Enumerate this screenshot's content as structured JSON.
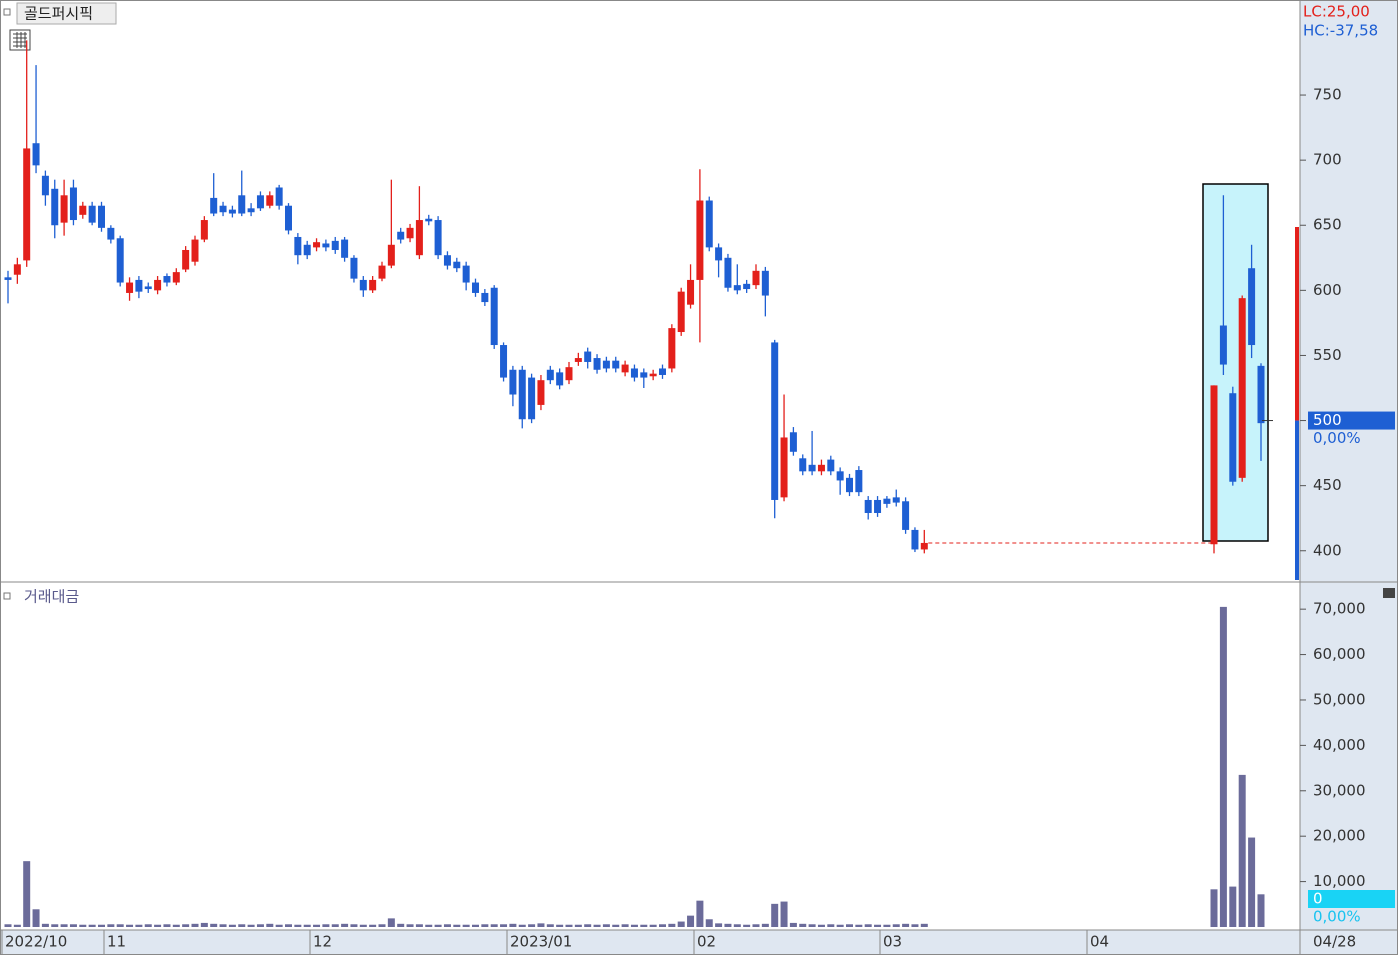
{
  "chart_data": {
    "type": "candlestick",
    "title": "골드퍼시픽",
    "lc_label": "LC:25,00",
    "hc_label": "HC:-37,58",
    "volume_title": "거래대금",
    "ylim": [
      376,
      823
    ],
    "yticks": [
      400,
      450,
      500,
      550,
      600,
      650,
      700,
      750
    ],
    "vlim": [
      0,
      75100
    ],
    "vticks": [
      {
        "value": 10000,
        "label": "10,000"
      },
      {
        "value": 20000,
        "label": "20,000"
      },
      {
        "value": 30000,
        "label": "30,000"
      },
      {
        "value": 40000,
        "label": "40,000"
      },
      {
        "value": 50000,
        "label": "50,000"
      },
      {
        "value": 60000,
        "label": "60,000"
      },
      {
        "value": 70000,
        "label": "70,000"
      }
    ],
    "xlabels": [
      "2022/10",
      "11",
      "12",
      "2023/01",
      "02",
      "03",
      "04"
    ],
    "last_date": "04/28",
    "last_price": 500,
    "price_change": "0,00%",
    "last_volume": 0,
    "volume_change": "0,00%",
    "up_color": "#e3201b",
    "down_color": "#1e5fd3",
    "volume_color": "#6b6b9a",
    "segments": [
      {
        "open": [
          610,
          612,
          623,
          713,
          688,
          678,
          652,
          679,
          658,
          665,
          665,
          648,
          640,
          598,
          608,
          603,
          600,
          611,
          606,
          616,
          622,
          639,
          671,
          665,
          662,
          673,
          663,
          673,
          665,
          679,
          665,
          641,
          635,
          633,
          636,
          638,
          639,
          625,
          608,
          600,
          609,
          619,
          645,
          640,
          627,
          655,
          654,
          627,
          622,
          619,
          606,
          598,
          602,
          558,
          539,
          539,
          533,
          512,
          539,
          537,
          531,
          545,
          553,
          548,
          546,
          546,
          537,
          540,
          537,
          534,
          540,
          540,
          568,
          589,
          608,
          669,
          633,
          625,
          604,
          605,
          604,
          615,
          560,
          441,
          491,
          471,
          466,
          461,
          470,
          461,
          456,
          462,
          439,
          439,
          440,
          441,
          438,
          416,
          401
        ],
        "high": [
          615,
          625,
          792,
          773,
          692,
          685,
          685,
          685,
          668,
          668,
          668,
          650,
          642,
          610,
          611,
          606,
          611,
          613,
          617,
          634,
          642,
          657,
          690,
          668,
          665,
          692,
          667,
          676,
          676,
          681,
          667,
          644,
          638,
          640,
          639,
          641,
          641,
          627,
          611,
          611,
          622,
          685,
          648,
          651,
          680,
          658,
          657,
          630,
          625,
          622,
          609,
          601,
          604,
          560,
          542,
          542,
          536,
          535,
          542,
          540,
          545,
          552,
          556,
          551,
          549,
          549,
          546,
          543,
          540,
          539,
          543,
          574,
          602,
          620,
          693,
          672,
          636,
          628,
          620,
          608,
          620,
          618,
          562,
          520,
          495,
          474,
          492,
          470,
          473,
          464,
          459,
          465,
          442,
          442,
          442,
          447,
          441,
          418,
          416
        ],
        "low": [
          590,
          605,
          618,
          690,
          665,
          640,
          642,
          650,
          655,
          650,
          645,
          636,
          603,
          592,
          594,
          598,
          597,
          603,
          604,
          614,
          619,
          637,
          657,
          657,
          656,
          657,
          657,
          661,
          663,
          662,
          643,
          620,
          624,
          630,
          630,
          628,
          622,
          606,
          595,
          598,
          607,
          617,
          636,
          637,
          624,
          650,
          624,
          616,
          614,
          600,
          595,
          588,
          555,
          530,
          511,
          494,
          498,
          508,
          528,
          524,
          528,
          542,
          540,
          536,
          537,
          537,
          534,
          530,
          525,
          531,
          532,
          537,
          565,
          586,
          560,
          630,
          610,
          599,
          597,
          598,
          601,
          580,
          425,
          438,
          473,
          458,
          458,
          458,
          458,
          443,
          442,
          442,
          424,
          426,
          433,
          434,
          413,
          399,
          398
        ],
        "close": [
          608,
          620,
          709,
          696,
          673,
          650,
          673,
          654,
          665,
          652,
          648,
          639,
          606,
          606,
          599,
          601,
          608,
          606,
          614,
          631,
          639,
          654,
          659,
          660,
          659,
          659,
          660,
          663,
          673,
          665,
          646,
          627,
          627,
          637,
          633,
          631,
          625,
          609,
          600,
          608,
          619,
          635,
          639,
          648,
          654,
          653,
          627,
          619,
          617,
          606,
          598,
          591,
          558,
          533,
          520,
          501,
          501,
          531,
          531,
          527,
          541,
          548,
          545,
          539,
          540,
          540,
          543,
          533,
          533,
          536,
          535,
          571,
          599,
          608,
          669,
          633,
          623,
          602,
          600,
          601,
          615,
          596,
          439,
          487,
          476,
          461,
          461,
          466,
          461,
          454,
          445,
          445,
          429,
          429,
          436,
          437,
          416,
          401,
          406
        ],
        "volume": [
          600,
          500,
          14500,
          3900,
          700,
          600,
          600,
          600,
          500,
          500,
          500,
          600,
          600,
          500,
          500,
          600,
          500,
          600,
          500,
          600,
          700,
          900,
          700,
          600,
          500,
          600,
          500,
          600,
          700,
          500,
          600,
          500,
          500,
          500,
          600,
          600,
          700,
          600,
          500,
          500,
          600,
          1900,
          700,
          600,
          600,
          500,
          500,
          600,
          500,
          500,
          500,
          600,
          600,
          600,
          700,
          500,
          600,
          800,
          600,
          500,
          500,
          500,
          600,
          500,
          600,
          500,
          600,
          500,
          500,
          500,
          600,
          700,
          1200,
          2500,
          5800,
          1700,
          800,
          700,
          600,
          500,
          600,
          700,
          5100,
          5600,
          900,
          700,
          600,
          500,
          600,
          500,
          600,
          500,
          600,
          500,
          500,
          600,
          700,
          600,
          700
        ]
      },
      {
        "open": [
          405,
          573,
          521,
          456,
          617,
          542
        ],
        "high": [
          527,
          673,
          526,
          596,
          635,
          544
        ],
        "low": [
          398,
          535,
          450,
          453,
          548,
          469
        ],
        "close": [
          527,
          543,
          453,
          594,
          558,
          498
        ],
        "volume": [
          8300,
          70500,
          8900,
          33500,
          19700,
          7200
        ]
      }
    ]
  }
}
